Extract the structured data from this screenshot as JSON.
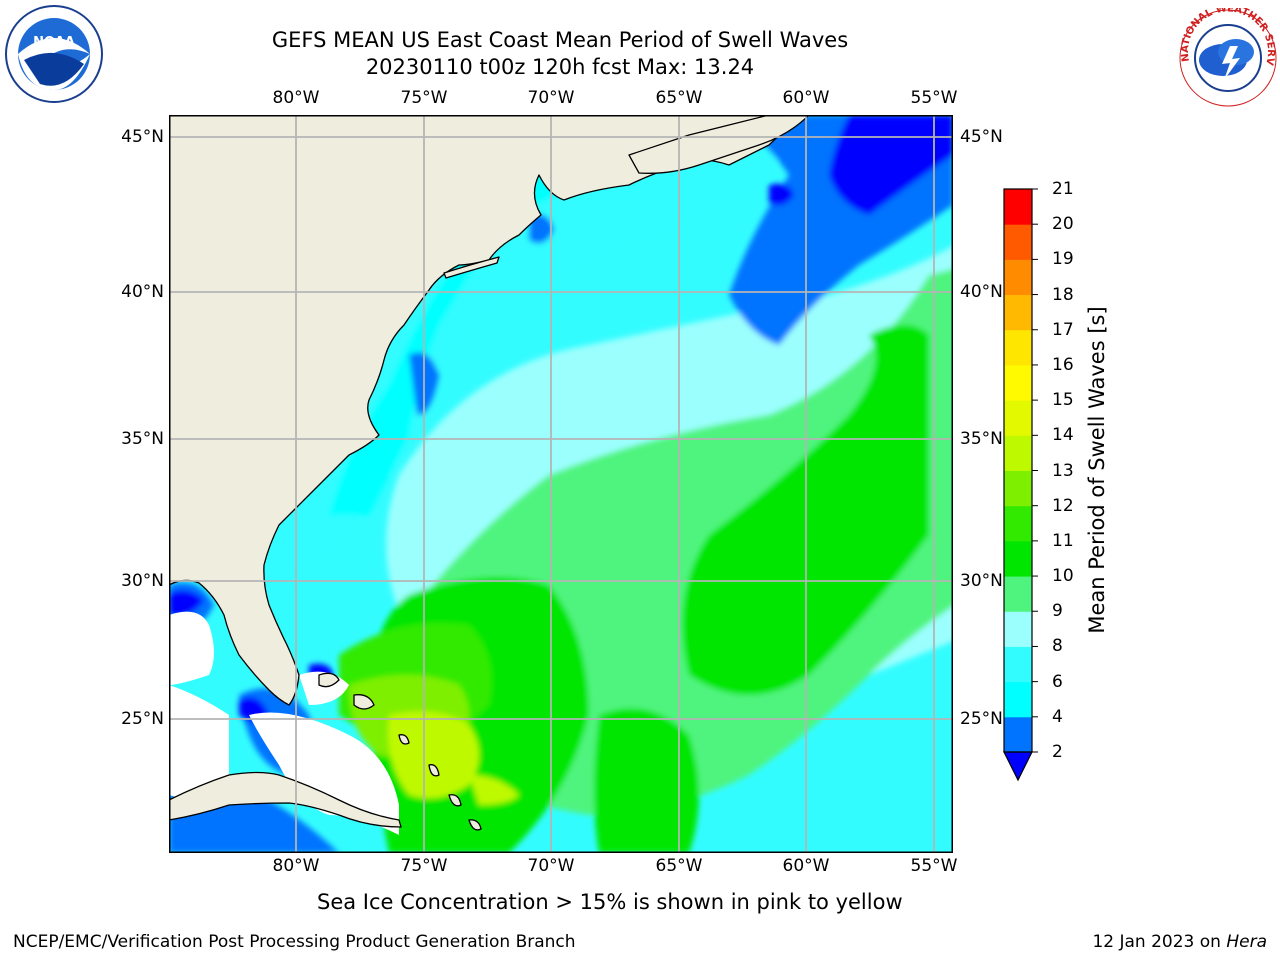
{
  "header": {
    "title_line1": "GEFS MEAN US East Coast Mean Period of Swell Waves",
    "title_line2": "20230110 t00z 120h fcst   Max: 13.24"
  },
  "logos": {
    "left": "noaa-logo",
    "right": "national-weather-service-logo",
    "left_text": "NOAA",
    "right_text": "NATIONAL WEATHER SERVICE"
  },
  "map": {
    "lon_labels": [
      "80°W",
      "75°W",
      "70°W",
      "65°W",
      "60°W",
      "55°W"
    ],
    "lat_labels": [
      "45°N",
      "40°N",
      "35°N",
      "30°N",
      "25°N"
    ],
    "lon_range": [
      -85,
      -54.2
    ],
    "lat_range": [
      20.5,
      46
    ],
    "colors": {
      "land": "#efedde",
      "grid": "#b4b4b4",
      "coast": "#000000"
    }
  },
  "colorbar": {
    "label": "Mean Period of Swell Waves [s]",
    "ticks": [
      "2",
      "4",
      "6",
      "8",
      "9",
      "10",
      "11",
      "12",
      "13",
      "14",
      "15",
      "16",
      "17",
      "18",
      "19",
      "20",
      "21"
    ],
    "colors": [
      "#0073ff",
      "#00ffff",
      "#33fcff",
      "#9bfffe",
      "#4ff47e",
      "#00e600",
      "#32ea00",
      "#7fef00",
      "#bff900",
      "#e2f900",
      "#fffa00",
      "#ffe600",
      "#ffb900",
      "#ff8b00",
      "#ff5a00",
      "#ff2b00",
      "#ff0000"
    ],
    "under_color": "#0000ff",
    "bands": [
      {
        "lo": 2,
        "hi": 4,
        "color": "#0073ff"
      },
      {
        "lo": 4,
        "hi": 6,
        "color": "#00ffff"
      },
      {
        "lo": 6,
        "hi": 8,
        "color": "#33fcff"
      },
      {
        "lo": 8,
        "hi": 9,
        "color": "#9bfffe"
      },
      {
        "lo": 9,
        "hi": 10,
        "color": "#4ff47e"
      },
      {
        "lo": 10,
        "hi": 11,
        "color": "#00e600"
      },
      {
        "lo": 11,
        "hi": 12,
        "color": "#32ea00"
      },
      {
        "lo": 12,
        "hi": 13,
        "color": "#7fef00"
      },
      {
        "lo": 13,
        "hi": 14,
        "color": "#bff900"
      },
      {
        "lo": 14,
        "hi": 15,
        "color": "#e2f900"
      },
      {
        "lo": 15,
        "hi": 16,
        "color": "#fffa00"
      },
      {
        "lo": 16,
        "hi": 17,
        "color": "#ffe600"
      },
      {
        "lo": 17,
        "hi": 18,
        "color": "#ffb900"
      },
      {
        "lo": 18,
        "hi": 19,
        "color": "#ff8b00"
      },
      {
        "lo": 19,
        "hi": 20,
        "color": "#ff5a00"
      },
      {
        "lo": 20,
        "hi": 21,
        "color": "#ff0000"
      }
    ]
  },
  "note": "Sea Ice Concentration > 15% is shown in pink to yellow",
  "footer": {
    "left": "NCEP/EMC/Verification Post Processing Product Generation Branch",
    "right_prefix": "12 Jan 2023 on ",
    "right_host": "Hera"
  }
}
